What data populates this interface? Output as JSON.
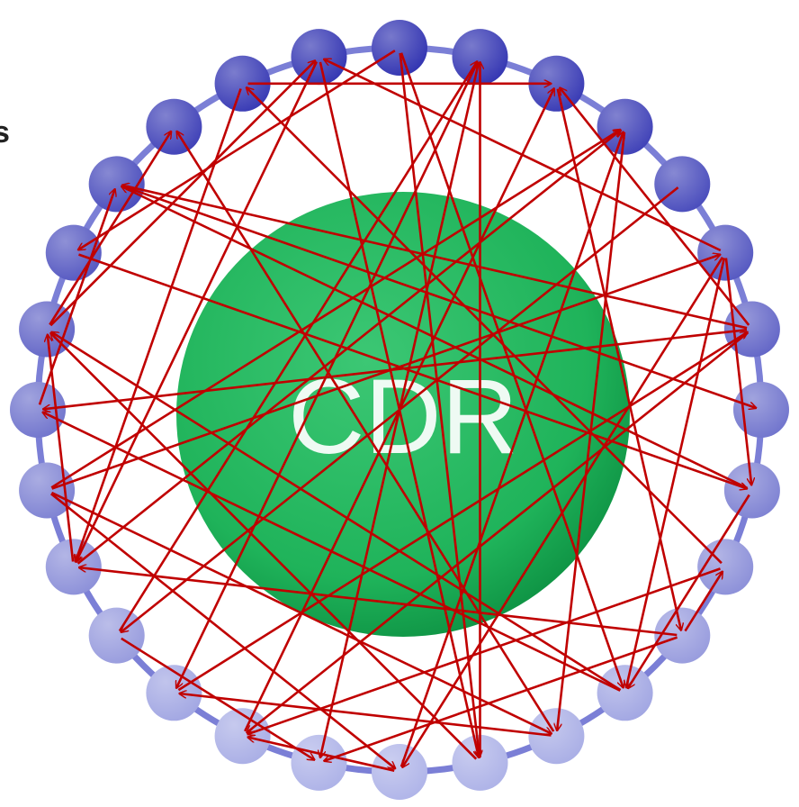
{
  "cut_off_text": "s",
  "hub": {
    "label": "CDR",
    "color": "#1fb35a",
    "dark_color": "#0a8a3e"
  },
  "ring": {
    "color": "#7b7fd6",
    "node_count": 28,
    "node_color_top": "#2e30b0",
    "node_color_bottom": "#aeb3e8"
  },
  "arrow_color": "#c00000",
  "edges": [
    [
      5,
      14
    ],
    [
      5,
      27
    ],
    [
      5,
      8
    ],
    [
      5,
      11
    ],
    [
      6,
      2
    ],
    [
      6,
      16
    ],
    [
      6,
      21
    ],
    [
      6,
      24
    ],
    [
      8,
      24
    ],
    [
      8,
      11
    ],
    [
      9,
      16
    ],
    [
      9,
      26
    ],
    [
      10,
      15
    ],
    [
      10,
      19
    ],
    [
      11,
      22
    ],
    [
      11,
      21
    ],
    [
      12,
      17
    ],
    [
      12,
      25
    ],
    [
      13,
      22
    ],
    [
      13,
      1
    ],
    [
      14,
      16
    ],
    [
      16,
      2
    ],
    [
      17,
      6
    ],
    [
      18,
      1
    ],
    [
      19,
      3
    ],
    [
      19,
      22
    ],
    [
      20,
      3
    ],
    [
      20,
      5
    ],
    [
      20,
      12
    ],
    [
      20,
      14
    ],
    [
      21,
      24
    ],
    [
      22,
      25
    ],
    [
      22,
      27
    ],
    [
      23,
      8
    ],
    [
      24,
      7
    ],
    [
      26,
      2
    ],
    [
      0,
      13
    ],
    [
      0,
      11
    ],
    [
      0,
      23
    ],
    [
      1,
      17
    ],
    [
      1,
      15
    ],
    [
      2,
      10
    ],
    [
      3,
      12
    ],
    [
      4,
      18
    ],
    [
      27,
      19
    ],
    [
      26,
      19
    ],
    [
      27,
      13
    ],
    [
      14,
      3
    ],
    [
      10,
      9
    ],
    [
      18,
      15
    ]
  ]
}
